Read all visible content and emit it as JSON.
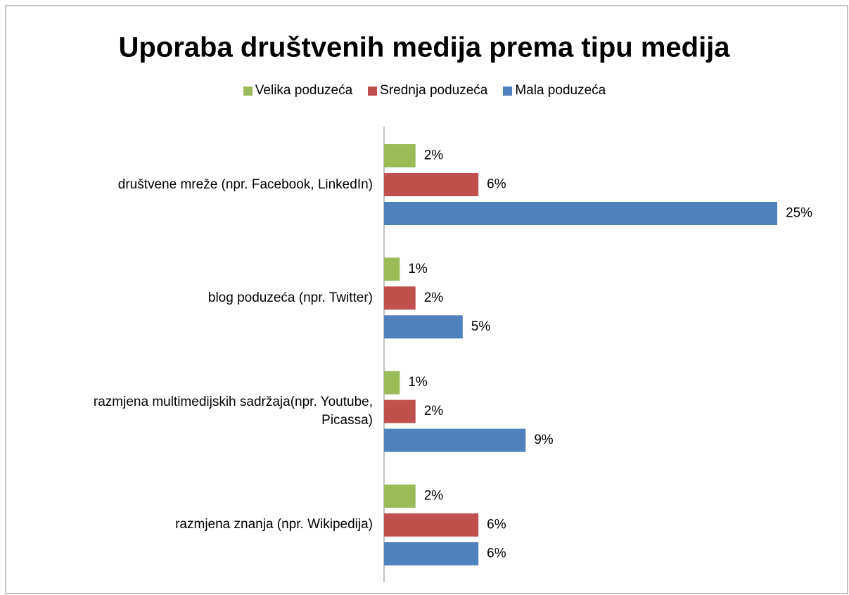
{
  "chart_data": {
    "type": "bar",
    "orientation": "horizontal",
    "title": "Uporaba društvenih medija prema tipu medija",
    "categories": [
      "društvene mreže (npr. Facebook, LinkedIn)",
      "blog poduzeća (npr. Twitter)",
      "razmjena multimedijskih sadržaja(npr. Youtube, Picassa)",
      "razmjena znanja (npr. Wikipedija)"
    ],
    "series": [
      {
        "name": "Velika poduzeća",
        "color": "#9bbb59",
        "values": [
          2,
          1,
          1,
          2
        ],
        "value_labels": [
          "2%",
          "1%",
          "1%",
          "2%"
        ]
      },
      {
        "name": "Srednja poduzeća",
        "color": "#c0504d",
        "values": [
          6,
          2,
          2,
          6
        ],
        "value_labels": [
          "6%",
          "2%",
          "2%",
          "6%"
        ]
      },
      {
        "name": "Mala poduzeća",
        "color": "#4f81bd",
        "values": [
          25,
          5,
          9,
          6
        ],
        "value_labels": [
          "25%",
          "5%",
          "9%",
          "6%"
        ]
      }
    ],
    "legend": "top"
  }
}
